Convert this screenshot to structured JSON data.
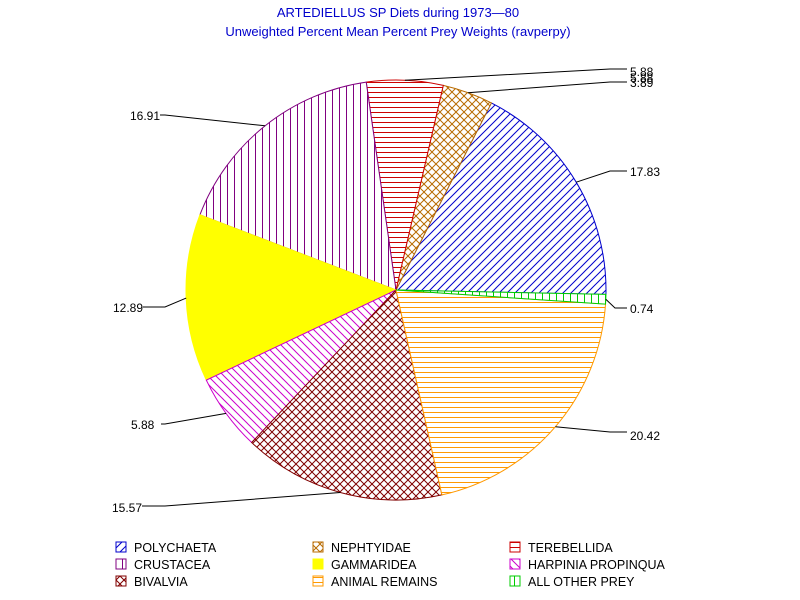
{
  "chart_data": {
    "type": "pie",
    "title": "ARTEDIELLUS SP Diets during 1973—80",
    "subtitle": "Unweighted Percent Mean Percent Prey  Weights (ravperpy)",
    "slices": [
      {
        "name": "POLYCHAETA",
        "value": 17.83,
        "label": "17.83",
        "color": "#0000cc",
        "pattern": "diag-up"
      },
      {
        "name": "NEPHTYIDAE",
        "value": 3.89,
        "label": "3.89",
        "color": "#b86b00",
        "pattern": "crosshatch"
      },
      {
        "name": "TEREBELLIDA",
        "value": 5.88,
        "label": "5.88",
        "color": "#cc0000",
        "pattern": "horizontal"
      },
      {
        "name": "CRUSTACEA",
        "value": 16.91,
        "label": "16.91",
        "color": "#800080",
        "pattern": "vertical"
      },
      {
        "name": "GAMMARIDEA",
        "value": 12.89,
        "label": "12.89",
        "color": "#ffff00",
        "pattern": "solid"
      },
      {
        "name": "HARPINIA PROPINQUA",
        "value": 5.88,
        "label": "5.88",
        "color": "#cc00cc",
        "pattern": "diag-down"
      },
      {
        "name": "BIVALVIA",
        "value": 15.57,
        "label": "15.57",
        "color": "#800000",
        "pattern": "crosshatch"
      },
      {
        "name": "ANIMAL REMAINS",
        "value": 20.42,
        "label": "20.42",
        "color": "#ff9900",
        "pattern": "horizontal"
      },
      {
        "name": "ALL OTHER PREY",
        "value": 0.74,
        "label": "0.74",
        "color": "#00cc00",
        "pattern": "vertical"
      }
    ],
    "extra_labels": [
      "5.88"
    ],
    "legend": {
      "placement": "bottom",
      "items": [
        {
          "name": "POLYCHAETA",
          "slice": 0
        },
        {
          "name": "NEPHTYIDAE",
          "slice": 1
        },
        {
          "name": "TEREBELLIDA",
          "slice": 2
        },
        {
          "name": "CRUSTACEA",
          "slice": 3
        },
        {
          "name": "GAMMARIDEA",
          "slice": 4
        },
        {
          "name": "HARPINIA PROPINQUA",
          "slice": 5
        },
        {
          "name": "BIVALVIA",
          "slice": 6
        },
        {
          "name": "ANIMAL REMAINS",
          "slice": 7
        },
        {
          "name": "ALL OTHER PREY",
          "slice": 8
        }
      ]
    }
  }
}
